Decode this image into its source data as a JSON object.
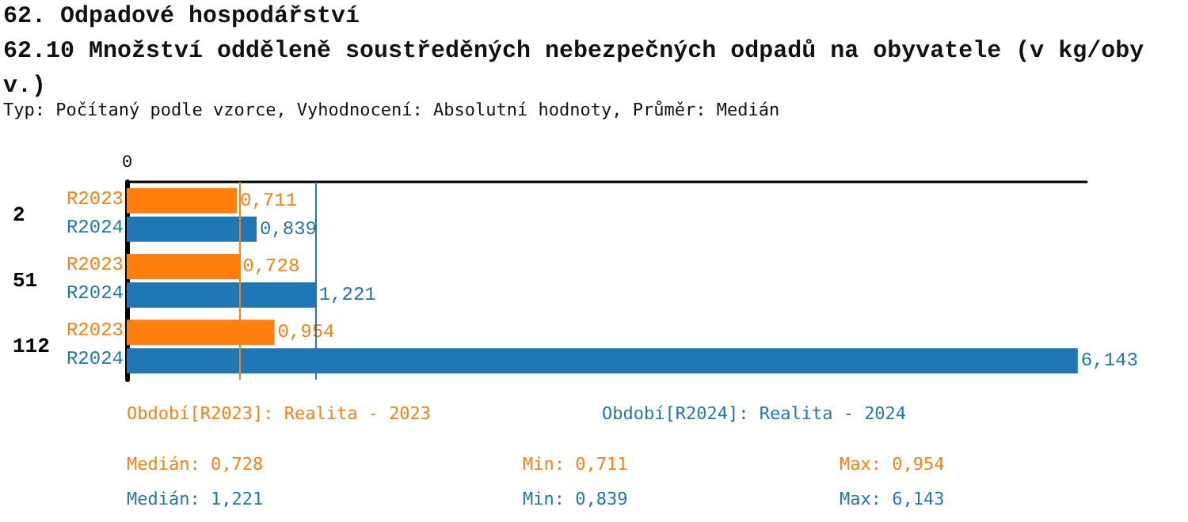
{
  "chart_data": {
    "type": "bar",
    "orientation": "horizontal",
    "xlim": [
      0,
      6.2
    ],
    "title": "62. Odpadové hospodářství",
    "subtitle": "62.10 Množství odděleně soustředěných nebezpečných odpadů na obyvatele (v kg/obyv.)",
    "categories": [
      "2",
      "51",
      "112"
    ],
    "series": [
      {
        "name": "R2023",
        "color": "#ff7f0e",
        "values": [
          0.711,
          0.728,
          0.954
        ],
        "value_labels": [
          "0,711",
          "0,728",
          "0,954"
        ]
      },
      {
        "name": "R2024",
        "color": "#1f77b4",
        "values": [
          0.839,
          1.221,
          6.143
        ],
        "value_labels": [
          "0,839",
          "1,221",
          "6,143"
        ]
      }
    ],
    "legend": false,
    "ref_lines": [
      {
        "axis": "x",
        "value": 0.728,
        "color": "#ff7f0e"
      },
      {
        "axis": "x",
        "value": 1.221,
        "color": "#1f77b4"
      }
    ],
    "annotations": [
      "Typ: Počítaný podle vzorce, Vyhodnocení: Absolutní hodnoty, Průměr: Medián",
      "Období[R2023]: Realita - 2023",
      "Období[R2024]: Realita - 2024",
      "Medián: 0,728",
      "Min: 0,711",
      "Max: 0,954",
      "Medián: 1,221",
      "Min: 0,839",
      "Max: 6,143",
      "0"
    ]
  }
}
